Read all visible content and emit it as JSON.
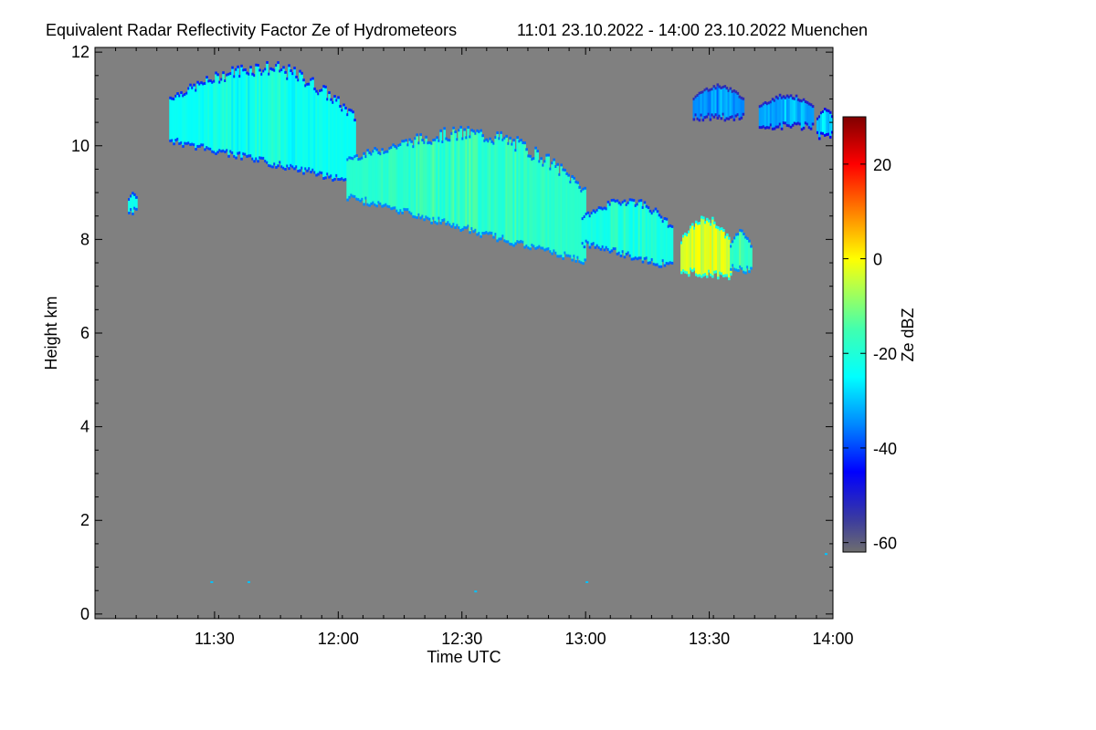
{
  "chart_data": {
    "type": "heatmap",
    "title": "Equivalent Radar Reflectivity Factor Ze of Hydrometeors",
    "subtitle": "11:01 23.10.2022 - 14:00 23.10.2022 Muenchen",
    "xlabel": "Time UTC",
    "ylabel": "Height km",
    "colorbar_label": "Ze dBZ",
    "background_color": "#808080",
    "x_range_minutes_utc": [
      661,
      840
    ],
    "xlim": [
      "11:01",
      "14:00"
    ],
    "x_ticks": [
      {
        "minutes": 690,
        "label": "11:30"
      },
      {
        "minutes": 720,
        "label": "12:00"
      },
      {
        "minutes": 750,
        "label": "12:30"
      },
      {
        "minutes": 780,
        "label": "13:00"
      },
      {
        "minutes": 810,
        "label": "13:30"
      },
      {
        "minutes": 840,
        "label": "14:00"
      }
    ],
    "ylim": [
      -0.1,
      12.1
    ],
    "y_ticks": [
      {
        "value": 0,
        "label": "0"
      },
      {
        "value": 2,
        "label": "2"
      },
      {
        "value": 4,
        "label": "4"
      },
      {
        "value": 6,
        "label": "6"
      },
      {
        "value": 8,
        "label": "8"
      },
      {
        "value": 10,
        "label": "10"
      },
      {
        "value": 12,
        "label": "12"
      }
    ],
    "colorbar_range_dbz": [
      -62,
      30
    ],
    "colorbar_ticks": [
      {
        "value": 20,
        "label": "20"
      },
      {
        "value": 0,
        "label": "0"
      },
      {
        "value": -20,
        "label": "-20"
      },
      {
        "value": -40,
        "label": "-40"
      },
      {
        "value": -60,
        "label": "-60"
      }
    ],
    "colormap_stops": [
      {
        "dbz": -62,
        "color": "#6e6e6e"
      },
      {
        "dbz": -55,
        "color": "#3a3aa0"
      },
      {
        "dbz": -45,
        "color": "#0000ff"
      },
      {
        "dbz": -35,
        "color": "#0088ff"
      },
      {
        "dbz": -25,
        "color": "#00ffff"
      },
      {
        "dbz": -15,
        "color": "#40ffb0"
      },
      {
        "dbz": -5,
        "color": "#c0ff40"
      },
      {
        "dbz": 0,
        "color": "#ffff00"
      },
      {
        "dbz": 10,
        "color": "#ff8000"
      },
      {
        "dbz": 20,
        "color": "#ff0000"
      },
      {
        "dbz": 30,
        "color": "#800000"
      }
    ],
    "cloud_regions": [
      {
        "name": "cirrus-1",
        "t_start": 679,
        "t_end": 724,
        "top_km": 11.8,
        "base_km": 10.2,
        "base_end_km": 9.3,
        "dbz": -24
      },
      {
        "name": "cirrus-2",
        "t_start": 722,
        "t_end": 780,
        "top_km": 10.4,
        "base_km": 9.0,
        "base_end_km": 7.6,
        "dbz": -19
      },
      {
        "name": "cirrus-3",
        "t_start": 779,
        "t_end": 801,
        "top_km": 8.9,
        "base_km": 8.0,
        "base_end_km": 7.5,
        "dbz": -22
      },
      {
        "name": "cirrus-4",
        "t_start": 803,
        "t_end": 815,
        "top_km": 8.5,
        "base_km": 7.4,
        "base_end_km": 7.3,
        "dbz": -4
      },
      {
        "name": "cirrus-5",
        "t_start": 815,
        "t_end": 820,
        "top_km": 8.2,
        "base_km": 7.5,
        "base_end_km": 7.4,
        "dbz": -18
      },
      {
        "name": "small-patch-1",
        "t_start": 669,
        "t_end": 671,
        "top_km": 9.0,
        "base_km": 8.7,
        "base_end_km": 8.7,
        "dbz": -22
      },
      {
        "name": "upper-layer-1",
        "t_start": 806,
        "t_end": 818,
        "top_km": 11.3,
        "base_km": 10.7,
        "base_end_km": 10.7,
        "dbz": -35
      },
      {
        "name": "upper-layer-2",
        "t_start": 822,
        "t_end": 835,
        "top_km": 11.1,
        "base_km": 10.5,
        "base_end_km": 10.5,
        "dbz": -33
      },
      {
        "name": "upper-layer-3",
        "t_start": 836,
        "t_end": 840,
        "top_km": 10.8,
        "base_km": 10.3,
        "base_end_km": 10.3,
        "dbz": -30
      }
    ]
  }
}
